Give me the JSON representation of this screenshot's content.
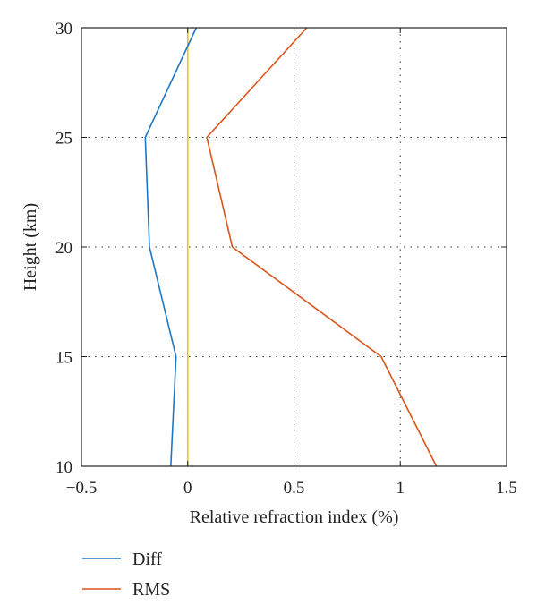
{
  "chart_data": {
    "type": "line",
    "xlabel": "Relative refraction index (%)",
    "ylabel": "Height (km)",
    "xlim": [
      -0.5,
      1.5
    ],
    "ylim": [
      10,
      30
    ],
    "xticks": [
      -0.5,
      0,
      0.5,
      1,
      1.5
    ],
    "xtick_labels": [
      "−0.5",
      "0",
      "0.5",
      "1",
      "1.5"
    ],
    "yticks": [
      10,
      15,
      20,
      25,
      30
    ],
    "ytick_labels": [
      "10",
      "15",
      "20",
      "25",
      "30"
    ],
    "grid": "dotted",
    "legend_position": "below",
    "series": [
      {
        "name": "Diff",
        "color": "#1f77c4",
        "points": [
          {
            "x": -0.08,
            "y": 10
          },
          {
            "x": -0.055,
            "y": 15
          },
          {
            "x": -0.18,
            "y": 20
          },
          {
            "x": -0.2,
            "y": 25
          },
          {
            "x": 0.04,
            "y": 30
          }
        ]
      },
      {
        "name": "RMS",
        "color": "#d9541a",
        "points": [
          {
            "x": 1.17,
            "y": 10
          },
          {
            "x": 0.91,
            "y": 15
          },
          {
            "x": 0.21,
            "y": 20
          },
          {
            "x": 0.09,
            "y": 25
          },
          {
            "x": 0.56,
            "y": 30
          }
        ]
      }
    ],
    "reference_line": {
      "x": 0,
      "color": "#e6c619"
    }
  }
}
